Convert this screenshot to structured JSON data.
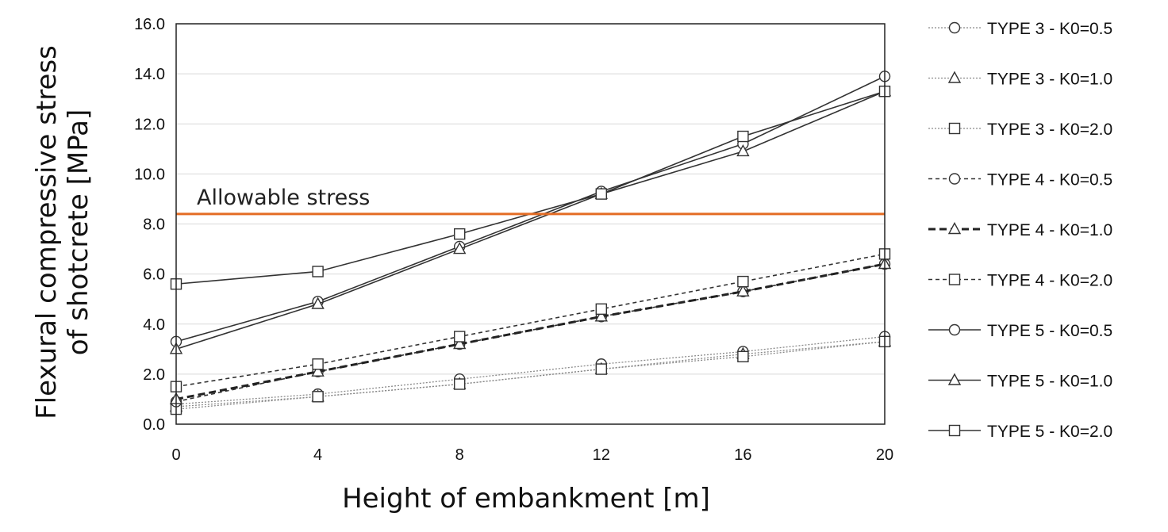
{
  "chart_data": {
    "type": "line",
    "title": "",
    "xlabel": "Height of embankment [m]",
    "ylabel_lines": [
      "Flexural compressive stress",
      "of shotcrete [MPa]"
    ],
    "x": [
      0,
      4,
      8,
      12,
      16,
      20
    ],
    "x_tick_labels": [
      "0",
      "4",
      "8",
      "12",
      "16",
      "20"
    ],
    "xlim": [
      0,
      20
    ],
    "ylim": [
      0,
      16
    ],
    "y_tick_labels": [
      "0.0",
      "2.0",
      "4.0",
      "6.0",
      "8.0",
      "10.0",
      "12.0",
      "14.0",
      "16.0"
    ],
    "grid": true,
    "legend_position": "right",
    "allowable_stress": {
      "label": "Allowable stress",
      "value": 8.4,
      "color": "#e46c24"
    },
    "series": [
      {
        "name": "TYPE 3 - K0=0.5",
        "marker": "circle",
        "line": "dotted",
        "values": [
          0.8,
          1.2,
          1.8,
          2.4,
          2.9,
          3.5
        ]
      },
      {
        "name": "TYPE 3 - K0=1.0",
        "marker": "triangle",
        "line": "dotted",
        "values": [
          0.7,
          1.1,
          1.6,
          2.2,
          2.8,
          3.3
        ]
      },
      {
        "name": "TYPE 3 - K0=2.0",
        "marker": "square",
        "line": "dotted",
        "values": [
          0.6,
          1.1,
          1.6,
          2.2,
          2.7,
          3.3
        ]
      },
      {
        "name": "TYPE 4 - K0=0.5",
        "marker": "circle",
        "line": "dashed",
        "values": [
          0.9,
          2.1,
          3.2,
          4.3,
          5.3,
          6.4
        ]
      },
      {
        "name": "TYPE 4 - K0=1.0",
        "marker": "triangle",
        "line": "bold-dashed",
        "values": [
          1.0,
          2.1,
          3.2,
          4.3,
          5.3,
          6.4
        ]
      },
      {
        "name": "TYPE 4 - K0=2.0",
        "marker": "square",
        "line": "dashed",
        "values": [
          1.5,
          2.4,
          3.5,
          4.6,
          5.7,
          6.8
        ]
      },
      {
        "name": "TYPE 5 - K0=0.5",
        "marker": "circle",
        "line": "solid",
        "values": [
          3.3,
          4.9,
          7.1,
          9.3,
          11.2,
          13.9
        ]
      },
      {
        "name": "TYPE 5 - K0=1.0",
        "marker": "triangle",
        "line": "solid",
        "values": [
          3.0,
          4.8,
          7.0,
          9.2,
          10.9,
          13.3
        ]
      },
      {
        "name": "TYPE 5 - K0=2.0",
        "marker": "square",
        "line": "solid",
        "values": [
          5.6,
          6.1,
          7.6,
          9.2,
          11.5,
          13.3
        ]
      }
    ]
  }
}
